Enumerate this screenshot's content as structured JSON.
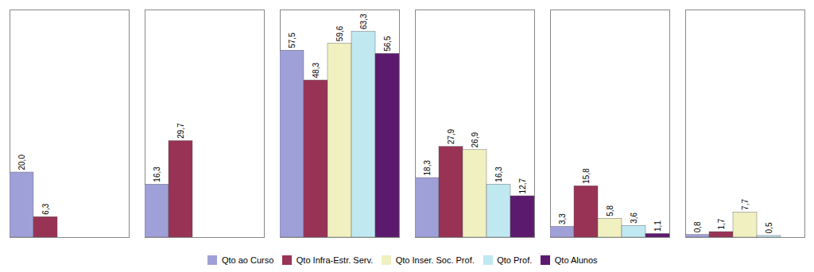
{
  "chart_data": {
    "type": "bar",
    "categories": [
      null,
      null,
      null,
      null,
      null,
      null
    ],
    "series": [
      {
        "name": "Qto ao Curso",
        "color": "#a0a0d8",
        "values": [
          20.0,
          16.3,
          57.5,
          18.3,
          3.3,
          0.8
        ],
        "value_labels": [
          "20,0",
          "16,3",
          "57,5",
          "18,3",
          "3,3",
          "0,8"
        ]
      },
      {
        "name": "Qto Infra-Estr. Serv.",
        "color": "#993355",
        "values": [
          6.3,
          29.7,
          48.3,
          27.9,
          15.8,
          1.7
        ],
        "value_labels": [
          "6,3",
          "29,7",
          "48,3",
          "27,9",
          "15,8",
          "1,7"
        ]
      },
      {
        "name": "Qto Inser. Soc. Prof.",
        "color": "#f0f0c0",
        "values": [
          0.0,
          0.0,
          59.6,
          26.9,
          5.8,
          7.7
        ],
        "value_labels": [
          null,
          null,
          "59,6",
          "26,9",
          "5,8",
          "7,7"
        ]
      },
      {
        "name": "Qto Prof.",
        "color": "#c0e8f0",
        "values": [
          0.0,
          0.0,
          63.3,
          16.3,
          3.6,
          0.5
        ],
        "value_labels": [
          null,
          null,
          "63,3",
          "16,3",
          "3,6",
          "0,5"
        ]
      },
      {
        "name": "Qto Alunos",
        "color": "#5c1a6e",
        "values": [
          0.0,
          0.0,
          56.5,
          12.7,
          1.1,
          0.0
        ],
        "value_labels": [
          null,
          null,
          "56,5",
          "12,7",
          "1,1",
          null
        ]
      }
    ],
    "ylim": [
      0,
      70
    ],
    "yticks": [],
    "grid": false,
    "legend": "bottom",
    "data_labels": true,
    "tick_labels": false
  }
}
